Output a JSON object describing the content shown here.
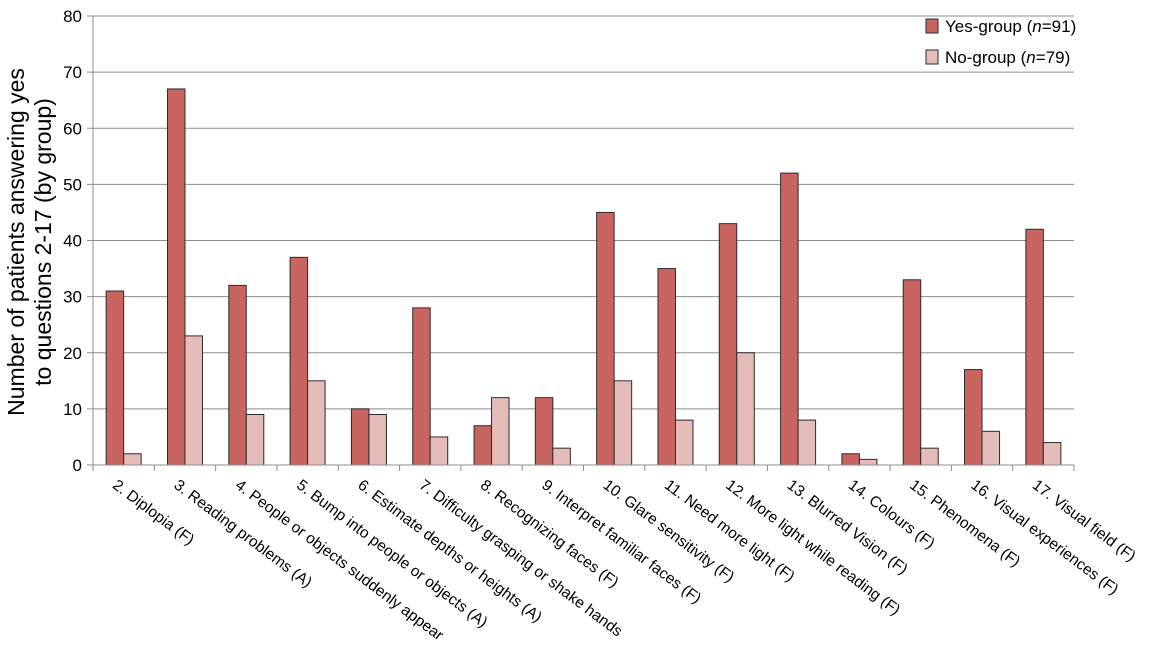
{
  "chart_data": {
    "type": "bar",
    "title": "",
    "xlabel": "",
    "ylabel": "Number of patients answering yes to questions 2-17 (by group)",
    "ylabel_lines": [
      "Number of patients answering yes",
      "to questions 2-17 (by group)"
    ],
    "ylim": [
      0,
      80
    ],
    "yticks": [
      0,
      10,
      20,
      30,
      40,
      50,
      60,
      70,
      80
    ],
    "grid": true,
    "legend_position": "top-right",
    "categories": [
      "2. Diplopia (F)",
      "3. Reading problems (A)",
      "4. People or objects suddenly appear",
      "5. Bump into people or objects (A)",
      "6. Estimate depths or heights (A)",
      "7. Difficulty grasping or shake hands",
      "8. Recognizing faces (F)",
      "9. Interpret familiar faces (F)",
      "10. Glare sensitivity (F)",
      "11. Need more light (F)",
      "12. More light while reading (F)",
      "13. Blurred Vision (F)",
      "14. Colours (F)",
      "15. Phenomena (F)",
      "16. Visual experiences (F)",
      "17. Visual field (F)"
    ],
    "series": [
      {
        "name": "Yes-group (n=91)",
        "legend_prefix": "Yes-group (",
        "legend_n": "n",
        "legend_suffix": "=91)",
        "color": "#c96560",
        "values": [
          31,
          67,
          32,
          37,
          10,
          28,
          7,
          12,
          45,
          35,
          43,
          52,
          2,
          33,
          17,
          42
        ]
      },
      {
        "name": "No-group (n=79)",
        "legend_prefix": "No-group (",
        "legend_n": "n",
        "legend_suffix": "=79)",
        "color": "#e6bcbb",
        "values": [
          2,
          23,
          9,
          15,
          9,
          5,
          12,
          3,
          15,
          8,
          20,
          8,
          1,
          3,
          6,
          4
        ]
      }
    ]
  }
}
